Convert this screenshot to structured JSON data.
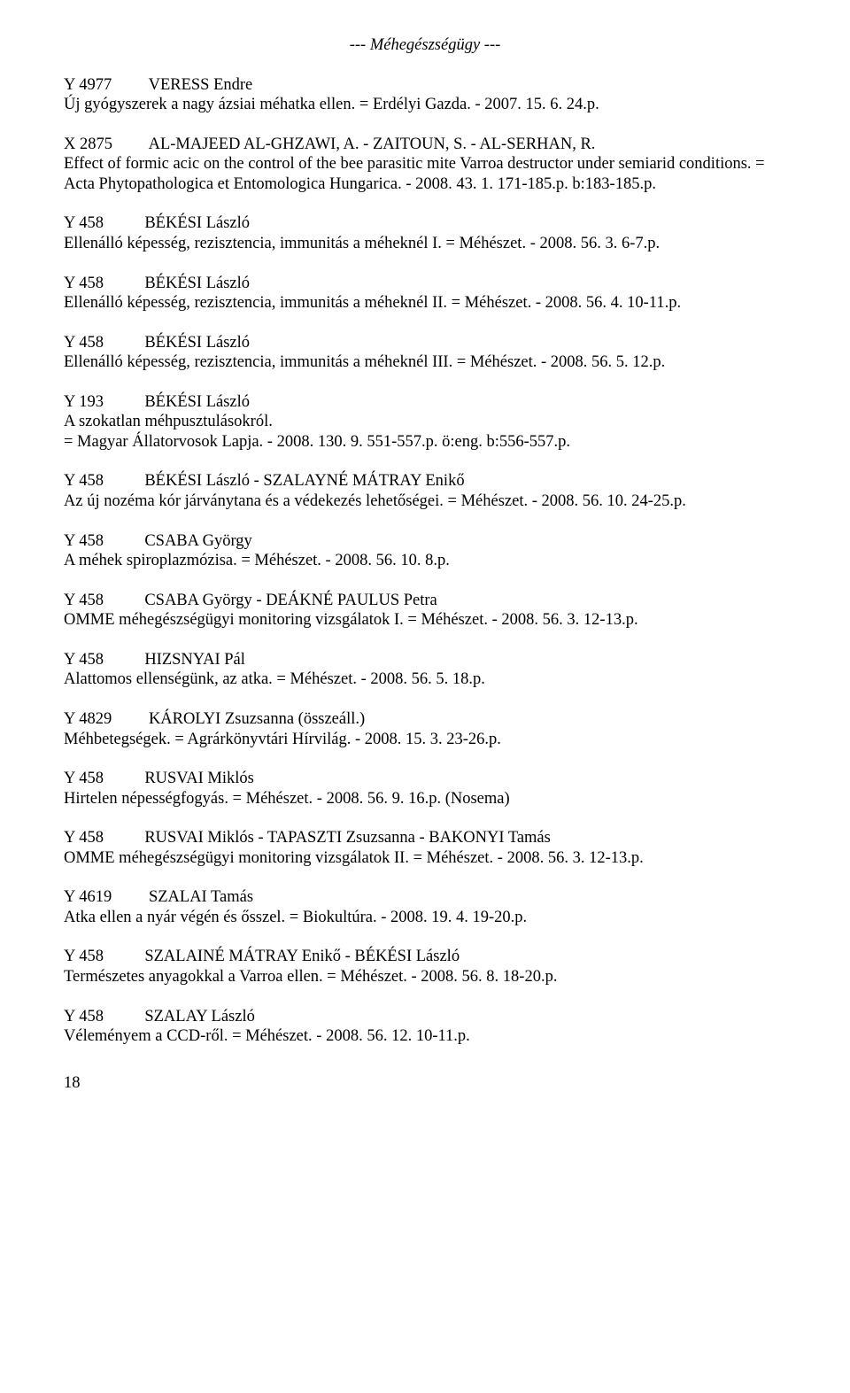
{
  "heading": "--- Méhegészségügy ---",
  "entries": [
    {
      "code": "Y 4977",
      "authors": "VERESS Endre",
      "body": "Új gyógyszerek a nagy ázsiai méhatka ellen. = Erdélyi Gazda. - 2007. 15. 6. 24.p."
    },
    {
      "code": "X 2875",
      "authors": "AL-MAJEED AL-GHZAWI, A. - ZAITOUN, S. - AL-SERHAN, R.",
      "body": "Effect of formic acic on the control of the bee parasitic mite Varroa destructor under semiarid conditions. = Acta Phytopathologica et Entomologica Hungarica. - 2008. 43. 1. 171-185.p. b:183-185.p."
    },
    {
      "code": "Y 458",
      "authors": "BÉKÉSI László",
      "body": "Ellenálló képesség, rezisztencia, immunitás a méheknél I. = Méhészet. - 2008. 56. 3. 6-7.p."
    },
    {
      "code": "Y 458",
      "authors": "BÉKÉSI László",
      "body": "Ellenálló képesség, rezisztencia, immunitás a méheknél II. = Méhészet. - 2008. 56. 4. 10-11.p."
    },
    {
      "code": "Y 458",
      "authors": "BÉKÉSI László",
      "body": "Ellenálló képesség, rezisztencia, immunitás a méheknél III. = Méhészet. - 2008. 56. 5. 12.p."
    },
    {
      "code": "Y 193",
      "authors": "BÉKÉSI László",
      "body": "A szokatlan méhpusztulásokról.\n= Magyar Állatorvosok Lapja. - 2008. 130. 9. 551-557.p. ö:eng. b:556-557.p."
    },
    {
      "code": "Y 458",
      "authors": "BÉKÉSI László - SZALAYNÉ MÁTRAY Enikő",
      "body": "Az új nozéma kór járványtana és a védekezés lehetőségei. = Méhészet. - 2008. 56. 10. 24-25.p."
    },
    {
      "code": "Y 458",
      "authors": "CSABA György",
      "body": "A méhek spiroplazmózisa. = Méhészet. - 2008. 56. 10. 8.p."
    },
    {
      "code": "Y 458",
      "authors": "CSABA György - DEÁKNÉ PAULUS Petra",
      "body": "OMME méhegészségügyi monitoring vizsgálatok I. = Méhészet. - 2008. 56. 3. 12-13.p."
    },
    {
      "code": "Y 458",
      "authors": "HIZSNYAI Pál",
      "body": "Alattomos ellenségünk, az atka. = Méhészet. - 2008. 56. 5. 18.p."
    },
    {
      "code": "Y 4829",
      "authors": "KÁROLYI Zsuzsanna (összeáll.)",
      "body": "Méhbetegségek. = Agrárkönyvtári Hírvilág. - 2008. 15. 3. 23-26.p."
    },
    {
      "code": "Y 458",
      "authors": "RUSVAI Miklós",
      "body": "Hirtelen népességfogyás. = Méhészet. - 2008. 56. 9. 16.p. (Nosema)"
    },
    {
      "code": "Y 458",
      "authors": "RUSVAI Miklós - TAPASZTI Zsuzsanna - BAKONYI Tamás",
      "body": "OMME méhegészségügyi monitoring vizsgálatok II. = Méhészet. - 2008. 56. 3. 12-13.p."
    },
    {
      "code": "Y 4619",
      "authors": "SZALAI Tamás",
      "body": "Atka ellen a nyár végén és ősszel. = Biokultúra. - 2008. 19. 4. 19-20.p."
    },
    {
      "code": "Y 458",
      "authors": "SZALAINÉ MÁTRAY Enikő - BÉKÉSI László",
      "body": "Természetes anyagokkal a Varroa ellen. = Méhészet. - 2008. 56. 8. 18-20.p."
    },
    {
      "code": "Y 458",
      "authors": "SZALAY László",
      "body": "Véleményem a CCD-ről. = Méhészet. - 2008. 56. 12. 10-11.p."
    }
  ],
  "pagenum": "18",
  "code_pad": 15
}
